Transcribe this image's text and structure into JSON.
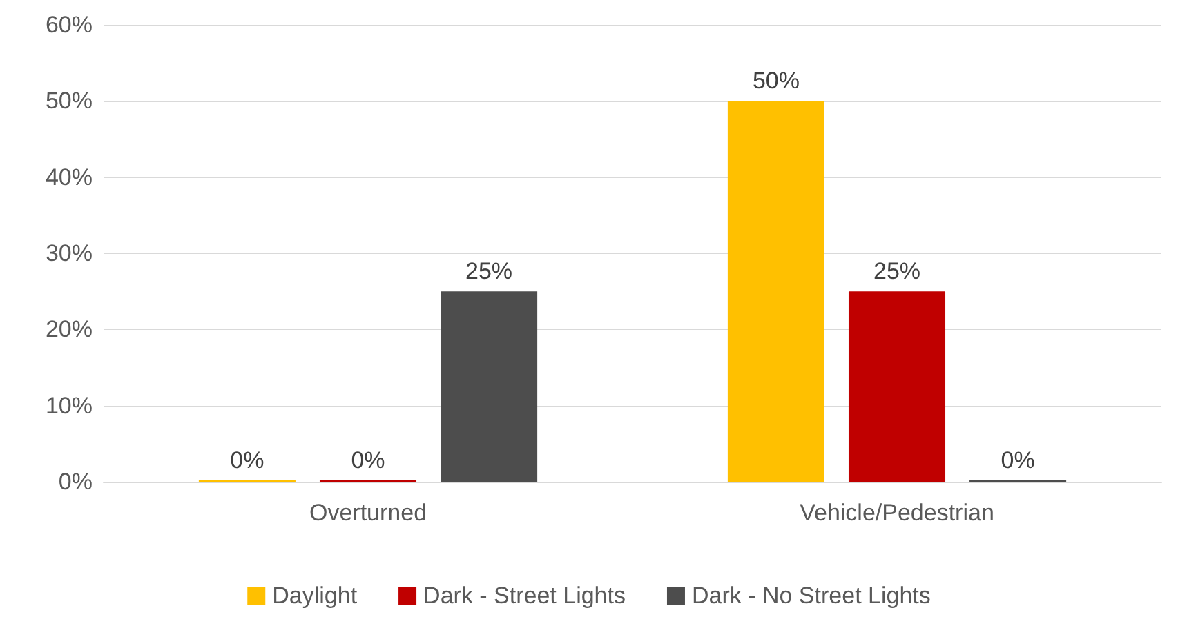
{
  "chart_data": {
    "type": "bar",
    "categories": [
      "Overturned",
      "Vehicle/Pedestrian"
    ],
    "series": [
      {
        "name": "Daylight",
        "color": "#ffc000",
        "values": [
          0,
          50
        ],
        "value_labels": [
          "0%",
          "50%"
        ]
      },
      {
        "name": "Dark - Street Lights",
        "color": "#c00000",
        "values": [
          0,
          25
        ],
        "value_labels": [
          "0%",
          "25%"
        ]
      },
      {
        "name": "Dark - No Street Lights",
        "color": "#4d4d4d",
        "values": [
          25,
          0
        ],
        "value_labels": [
          "25%",
          "0%"
        ]
      }
    ],
    "ylim": [
      0,
      60
    ],
    "yticks": [
      {
        "value": 0,
        "label": "0%"
      },
      {
        "value": 10,
        "label": "10%"
      },
      {
        "value": 20,
        "label": "20%"
      },
      {
        "value": 30,
        "label": "30%"
      },
      {
        "value": 40,
        "label": "40%"
      },
      {
        "value": 50,
        "label": "50%"
      },
      {
        "value": 60,
        "label": "60%"
      }
    ],
    "grid": "y",
    "legend": "bottom"
  }
}
